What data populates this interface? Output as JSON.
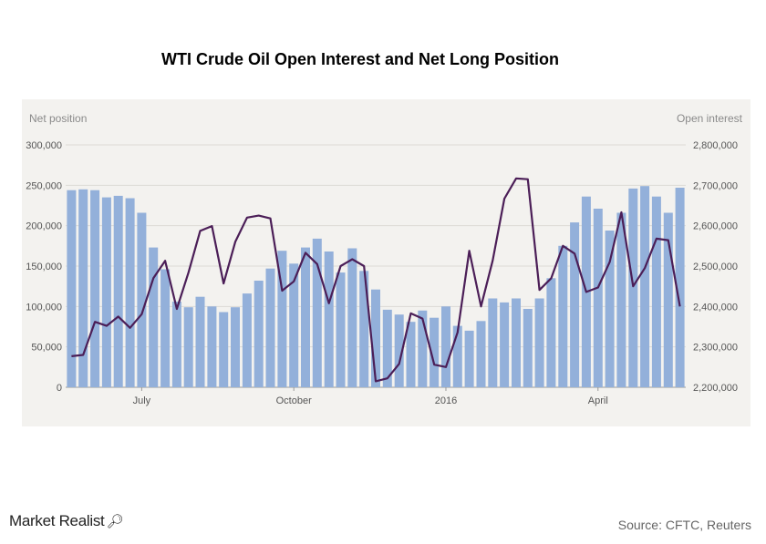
{
  "chart_data": {
    "type": "bar",
    "title": "WTI Crude Oil Open Interest and Net Long Position",
    "left_axis_label": "Net position",
    "right_axis_label": "Open interest",
    "left_ylim": [
      0,
      300000
    ],
    "left_ticks": [
      "300,000",
      "250,000",
      "200,000",
      "150,000",
      "100,000",
      "50,000",
      "0"
    ],
    "right_ylim": [
      2200000,
      2800000
    ],
    "right_ticks": [
      "2,800,000",
      "2,700,000",
      "2,600,000",
      "2,500,000",
      "2,400,000",
      "2,300,000",
      "2,200,000"
    ],
    "x_tick_labels": [
      {
        "label": "July",
        "index": 6
      },
      {
        "label": "October",
        "index": 19
      },
      {
        "label": "2016",
        "index": 32
      },
      {
        "label": "April",
        "index": 45
      }
    ],
    "grid": true,
    "series": [
      {
        "kind": "bar",
        "axis": "left",
        "color": "#93b0da",
        "values": [
          244000,
          245000,
          244000,
          235000,
          237000,
          234000,
          216000,
          173000,
          146000,
          106000,
          99000,
          112000,
          100000,
          93000,
          99000,
          116000,
          132000,
          147000,
          169000,
          153000,
          173000,
          184000,
          168000,
          142000,
          172000,
          144000,
          121000,
          96000,
          90000,
          81000,
          95000,
          86000,
          100000,
          76000,
          70000,
          82000,
          110000,
          105000,
          110000,
          97000,
          110000,
          135000,
          175000,
          204000,
          236000,
          221000,
          194000,
          216000,
          246000,
          249000,
          236000,
          216000,
          247000
        ]
      },
      {
        "kind": "line",
        "axis": "right",
        "color": "#4b1e57",
        "values": [
          2277000,
          2280000,
          2362000,
          2352000,
          2375000,
          2347000,
          2381000,
          2470000,
          2513000,
          2394000,
          2484000,
          2587000,
          2599000,
          2457000,
          2560000,
          2620000,
          2625000,
          2618000,
          2439000,
          2462000,
          2533000,
          2505000,
          2408000,
          2500000,
          2517000,
          2500000,
          2215000,
          2222000,
          2258000,
          2383000,
          2370000,
          2256000,
          2250000,
          2336000,
          2538000,
          2400000,
          2514000,
          2667000,
          2717000,
          2715000,
          2441000,
          2470000,
          2550000,
          2531000,
          2436000,
          2447000,
          2510000,
          2633000,
          2450000,
          2495000,
          2568000,
          2564000,
          2400000
        ]
      }
    ]
  },
  "brand": {
    "name": "Market Realist",
    "icon": "magnifier-icon"
  },
  "source": "Source: CFTC, Reuters"
}
